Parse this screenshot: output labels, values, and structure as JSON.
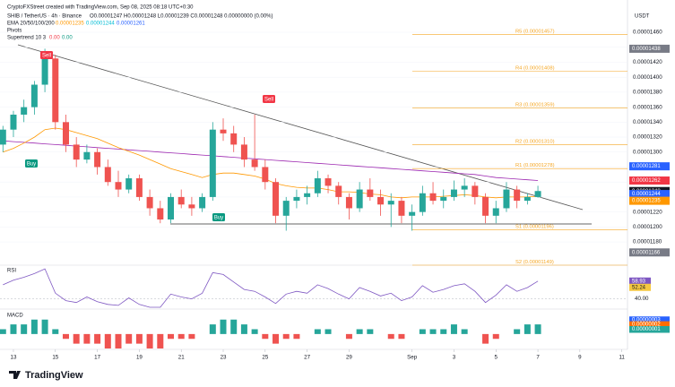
{
  "chart_data": {
    "type": "candlestick",
    "watermark": "CryptoFXStreet created with TradingView.com, Sep 08, 2025 08:18 UTC+0:30",
    "symbol": "SHIB / TetherUS · 4h · Binance",
    "ohlc_text": "O0.00001247 H0.00001248 L0.00001239 C0.00001248 0.00000000 (0.00%)",
    "ema_title": "EMA 20/50/100/200",
    "ema_values": [
      {
        "label": "0.00001235",
        "color": "#ff9800"
      },
      {
        "label": "0.00001244",
        "color": "#00bcd4"
      },
      {
        "label": "0.00001261",
        "color": "#2962ff"
      }
    ],
    "pivots_title": "Pivots",
    "supertrend_title": "Supertrend 10 3",
    "supertrend_values": [
      {
        "label": "0.00",
        "color": "#f23645"
      },
      {
        "label": "0.00",
        "color": "#089981"
      }
    ],
    "currency": "USDT",
    "brand": "TradingView",
    "x": [
      12.5,
      13,
      13.5,
      14,
      14.5,
      15,
      15.5,
      16,
      16.5,
      17,
      17.5,
      18,
      18.5,
      19,
      19.5,
      20,
      20.5,
      21,
      21.5,
      22,
      22.5,
      23,
      23.5,
      24,
      24.5,
      25,
      25.5,
      26,
      26.5,
      27,
      27.5,
      28,
      28.5,
      29,
      29.5,
      30,
      30.5,
      31,
      31.5,
      32,
      32.5,
      33,
      33.5,
      34,
      34.5,
      35,
      35.5,
      36,
      36.5,
      37,
      37.5,
      38
    ],
    "open": [
      1.31e-05,
      1.33e-05,
      1.35e-05,
      1.36e-05,
      1.39e-05,
      1.425e-05,
      1.34e-05,
      1.31e-05,
      1.29e-05,
      1.3e-05,
      1.28e-05,
      1.26e-05,
      1.25e-05,
      1.265e-05,
      1.24e-05,
      1.225e-05,
      1.21e-05,
      1.24e-05,
      1.23e-05,
      1.225e-05,
      1.24e-05,
      1.33e-05,
      1.325e-05,
      1.31e-05,
      1.29e-05,
      1.28e-05,
      1.26e-05,
      1.215e-05,
      1.235e-05,
      1.24e-05,
      1.245e-05,
      1.265e-05,
      1.255e-05,
      1.24e-05,
      1.225e-05,
      1.25e-05,
      1.24e-05,
      1.23e-05,
      1.235e-05,
      1.215e-05,
      1.22e-05,
      1.245e-05,
      1.235e-05,
      1.24e-05,
      1.25e-05,
      1.255e-05,
      1.24e-05,
      1.215e-05,
      1.225e-05,
      1.25e-05,
      1.235e-05,
      1.24e-05
    ],
    "high": [
      1.335e-05,
      1.355e-05,
      1.37e-05,
      1.395e-05,
      1.438e-05,
      1.43e-05,
      1.35e-05,
      1.32e-05,
      1.31e-05,
      1.305e-05,
      1.29e-05,
      1.275e-05,
      1.27e-05,
      1.27e-05,
      1.25e-05,
      1.235e-05,
      1.245e-05,
      1.25e-05,
      1.24e-05,
      1.245e-05,
      1.34e-05,
      1.345e-05,
      1.335e-05,
      1.32e-05,
      1.35e-05,
      1.29e-05,
      1.265e-05,
      1.24e-05,
      1.25e-05,
      1.255e-05,
      1.275e-05,
      1.27e-05,
      1.26e-05,
      1.245e-05,
      1.26e-05,
      1.265e-05,
      1.25e-05,
      1.245e-05,
      1.24e-05,
      1.23e-05,
      1.255e-05,
      1.26e-05,
      1.25e-05,
      1.262e-05,
      1.265e-05,
      1.26e-05,
      1.245e-05,
      1.235e-05,
      1.26e-05,
      1.255e-05,
      1.245e-05,
      1.255e-05
    ],
    "low": [
      1.3e-05,
      1.32e-05,
      1.34e-05,
      1.35e-05,
      1.38e-05,
      1.33e-05,
      1.3e-05,
      1.28e-05,
      1.285e-05,
      1.27e-05,
      1.255e-05,
      1.24e-05,
      1.245e-05,
      1.235e-05,
      1.215e-05,
      1.205e-05,
      1.205e-05,
      1.225e-05,
      1.215e-05,
      1.22e-05,
      1.235e-05,
      1.315e-05,
      1.3e-05,
      1.28e-05,
      1.275e-05,
      1.25e-05,
      1.205e-05,
      1.195e-05,
      1.225e-05,
      1.23e-05,
      1.24e-05,
      1.245e-05,
      1.23e-05,
      1.21e-05,
      1.22e-05,
      1.235e-05,
      1.215e-05,
      1.2e-05,
      1.205e-05,
      1.195e-05,
      1.215e-05,
      1.23e-05,
      1.225e-05,
      1.235e-05,
      1.24e-05,
      1.23e-05,
      1.205e-05,
      1.205e-05,
      1.22e-05,
      1.225e-05,
      1.23e-05,
      1.239e-05
    ],
    "close": [
      1.33e-05,
      1.35e-05,
      1.36e-05,
      1.39e-05,
      1.425e-05,
      1.34e-05,
      1.31e-05,
      1.29e-05,
      1.3e-05,
      1.28e-05,
      1.26e-05,
      1.25e-05,
      1.265e-05,
      1.24e-05,
      1.225e-05,
      1.21e-05,
      1.24e-05,
      1.23e-05,
      1.225e-05,
      1.24e-05,
      1.33e-05,
      1.325e-05,
      1.31e-05,
      1.29e-05,
      1.28e-05,
      1.26e-05,
      1.215e-05,
      1.235e-05,
      1.24e-05,
      1.245e-05,
      1.265e-05,
      1.255e-05,
      1.24e-05,
      1.225e-05,
      1.25e-05,
      1.24e-05,
      1.23e-05,
      1.235e-05,
      1.215e-05,
      1.22e-05,
      1.245e-05,
      1.235e-05,
      1.24e-05,
      1.25e-05,
      1.255e-05,
      1.24e-05,
      1.215e-05,
      1.225e-05,
      1.25e-05,
      1.235e-05,
      1.24e-05,
      1.248e-05
    ],
    "up_color": "#26a69a",
    "down_color": "#ef5350",
    "lines": [
      {
        "color": "#9c27b0",
        "values": [
          1.315e-05,
          1.314e-05,
          1.313e-05,
          1.312e-05,
          1.311e-05,
          1.31e-05,
          1.309e-05,
          1.308e-05,
          1.307e-05,
          1.306e-05,
          1.305e-05,
          1.304e-05,
          1.303e-05,
          1.302e-05,
          1.301e-05,
          1.3e-05,
          1.299e-05,
          1.298e-05,
          1.297e-05,
          1.296e-05,
          1.295e-05,
          1.294e-05,
          1.293e-05,
          1.292e-05,
          1.291e-05,
          1.29e-05,
          1.289e-05,
          1.288e-05,
          1.287e-05,
          1.286e-05,
          1.285e-05,
          1.284e-05,
          1.283e-05,
          1.282e-05,
          1.281e-05,
          1.28e-05,
          1.279e-05,
          1.278e-05,
          1.277e-05,
          1.276e-05,
          1.275e-05,
          1.274e-05,
          1.273e-05,
          1.272e-05,
          1.271e-05,
          1.27e-05,
          1.268e-05,
          1.266e-05,
          1.265e-05,
          1.264e-05,
          1.263e-05,
          1.262e-05
        ]
      },
      {
        "color": "#ff9800",
        "values": [
          1.3e-05,
          1.305e-05,
          1.312e-05,
          1.32e-05,
          1.33e-05,
          1.332e-05,
          1.33e-05,
          1.326e-05,
          1.322e-05,
          1.318e-05,
          1.312e-05,
          1.306e-05,
          1.301e-05,
          1.296e-05,
          1.29e-05,
          1.284e-05,
          1.278e-05,
          1.274e-05,
          1.27e-05,
          1.266e-05,
          1.27e-05,
          1.272e-05,
          1.272e-05,
          1.27e-05,
          1.268e-05,
          1.264e-05,
          1.258e-05,
          1.255e-05,
          1.253e-05,
          1.252e-05,
          1.252e-05,
          1.25e-05,
          1.247e-05,
          1.247e-05,
          1.246e-05,
          1.244e-05,
          1.243e-05,
          1.24e-05,
          1.239e-05,
          1.24e-05,
          1.24e-05,
          1.24e-05,
          1.241e-05,
          1.242e-05,
          1.243e-05,
          1.242e-05,
          1.24e-05,
          1.239e-05,
          1.24e-05,
          1.24e-05,
          1.24e-05,
          1.241e-05
        ]
      }
    ],
    "pivots": [
      {
        "value": 1.457e-05,
        "label": "R5 (0.00001457)"
      },
      {
        "value": 1.408e-05,
        "label": "R4 (0.00001408)"
      },
      {
        "value": 1.359e-05,
        "label": "R3 (0.00001359)"
      },
      {
        "value": 1.31e-05,
        "label": "R2 (0.00001310)"
      },
      {
        "value": 1.278e-05,
        "label": "R1 (0.00001278)"
      },
      {
        "value": 1.196e-05,
        "label": "S1 (0.00001196)"
      },
      {
        "value": 1.149e-05,
        "label": "S2 (0.00001149)"
      }
    ],
    "pivot_color": "#f5a623",
    "price_labels": [
      {
        "value": 1.438e-05,
        "label": "0.00001438",
        "color": "#787b86"
      },
      {
        "value": 1.281e-05,
        "label": "0.00001281",
        "color": "#2962ff"
      },
      {
        "value": 1.262e-05,
        "label": "0.00001262",
        "color": "#f23645"
      },
      {
        "value": 1.248e-05,
        "label": "0.00001248",
        "color": "#131722"
      },
      {
        "value": 1.244e-05,
        "label": "0.00001244",
        "color": "#2962ff"
      },
      {
        "value": 1.235e-05,
        "label": "0.00001235",
        "color": "#ff9800"
      },
      {
        "value": 1.166e-05,
        "label": "0.00001166",
        "color": "#787b86"
      }
    ],
    "countdown": "01:11:02",
    "signals": [
      "Sell",
      "Sell",
      "Buy",
      "Buy"
    ],
    "xlim": [
      12.36,
      42.27
    ],
    "xticks": [
      13,
      15,
      17,
      19,
      21,
      23,
      25,
      27,
      29,
      {
        "value": 32,
        "label": "Sep"
      },
      {
        "value": 34,
        "label": "3"
      },
      {
        "value": 36,
        "label": "5"
      },
      {
        "value": 38,
        "label": "7"
      },
      {
        "value": 40,
        "label": "9"
      },
      {
        "value": 42,
        "label": "11"
      }
    ],
    "ylim": [
      1.16e-05,
      1.48e-05
    ],
    "yticks": [
      {
        "value": 1.18e-05,
        "label": "0.00001180"
      },
      {
        "value": 1.2e-05,
        "label": "0.00001200"
      },
      {
        "value": 1.22e-05,
        "label": "0.00001220"
      },
      {
        "value": 1.24e-05,
        "label": "0.00001240"
      },
      {
        "value": 1.26e-05,
        "label": "0.00001260"
      },
      {
        "value": 1.28e-05,
        "label": "0.00001280"
      },
      {
        "value": 1.3e-05,
        "label": "0.00001300"
      },
      {
        "value": 1.32e-05,
        "label": "0.00001320"
      },
      {
        "value": 1.34e-05,
        "label": "0.00001340"
      },
      {
        "value": 1.36e-05,
        "label": "0.00001360"
      },
      {
        "value": 1.38e-05,
        "label": "0.00001380"
      },
      {
        "value": 1.4e-05,
        "label": "0.00001400"
      },
      {
        "value": 1.42e-05,
        "label": "0.00001420"
      },
      {
        "value": 1.44e-05,
        "label": "0.00001440"
      },
      {
        "value": 1.46e-05,
        "label": "0.00001460"
      }
    ],
    "rsi": {
      "title": "RSI",
      "color": "#7e57c2",
      "values": [
        55,
        60,
        63,
        67,
        72,
        46,
        38,
        36,
        42,
        37,
        34,
        33,
        41,
        34,
        31,
        31,
        45,
        42,
        40,
        46,
        68,
        66,
        58,
        50,
        48,
        42,
        35,
        45,
        48,
        46,
        55,
        51,
        45,
        40,
        52,
        48,
        43,
        46,
        38,
        42,
        54,
        47,
        50,
        54,
        56,
        48,
        36,
        44,
        55,
        48,
        52,
        58.93
      ],
      "sma_value": 52.24,
      "sma_color": "#f5c842",
      "ylim": [
        30,
        75
      ],
      "yticks": [
        {
          "value": 40,
          "label": "40.00"
        }
      ]
    },
    "macd": {
      "title": "MACD",
      "values": [
        1e-08,
        2e-08,
        2e-08,
        3e-08,
        3e-08,
        1e-08,
        -1e-08,
        -2e-08,
        -2e-08,
        -2e-08,
        -3e-08,
        -3e-08,
        -2e-08,
        -2e-08,
        -3e-08,
        -3e-08,
        -1e-08,
        -1e-08,
        -1e-08,
        0,
        2e-08,
        3e-08,
        3e-08,
        2e-08,
        1e-08,
        -1e-08,
        -2e-08,
        -1e-08,
        -1e-08,
        0,
        1e-08,
        1e-08,
        0,
        -1e-08,
        1e-08,
        1e-08,
        0,
        -1e-08,
        -1e-08,
        0,
        1e-08,
        1e-08,
        1e-08,
        2e-08,
        1e-08,
        0,
        -2e-08,
        -1e-08,
        0,
        1e-08,
        2e-08,
        2e-08
      ],
      "up_color": "#26a69a",
      "down_color": "#ef5350",
      "ylim": [
        -3e-08,
        5e-08
      ],
      "badges": [
        {
          "value": 3e-08,
          "label": "0.00000003",
          "color": "#2962ff"
        },
        {
          "value": 2e-08,
          "label": "0.00000002",
          "color": "#ff6d00"
        },
        {
          "value": 1e-08,
          "label": "0.00000001",
          "color": "#26a69a"
        }
      ]
    }
  }
}
